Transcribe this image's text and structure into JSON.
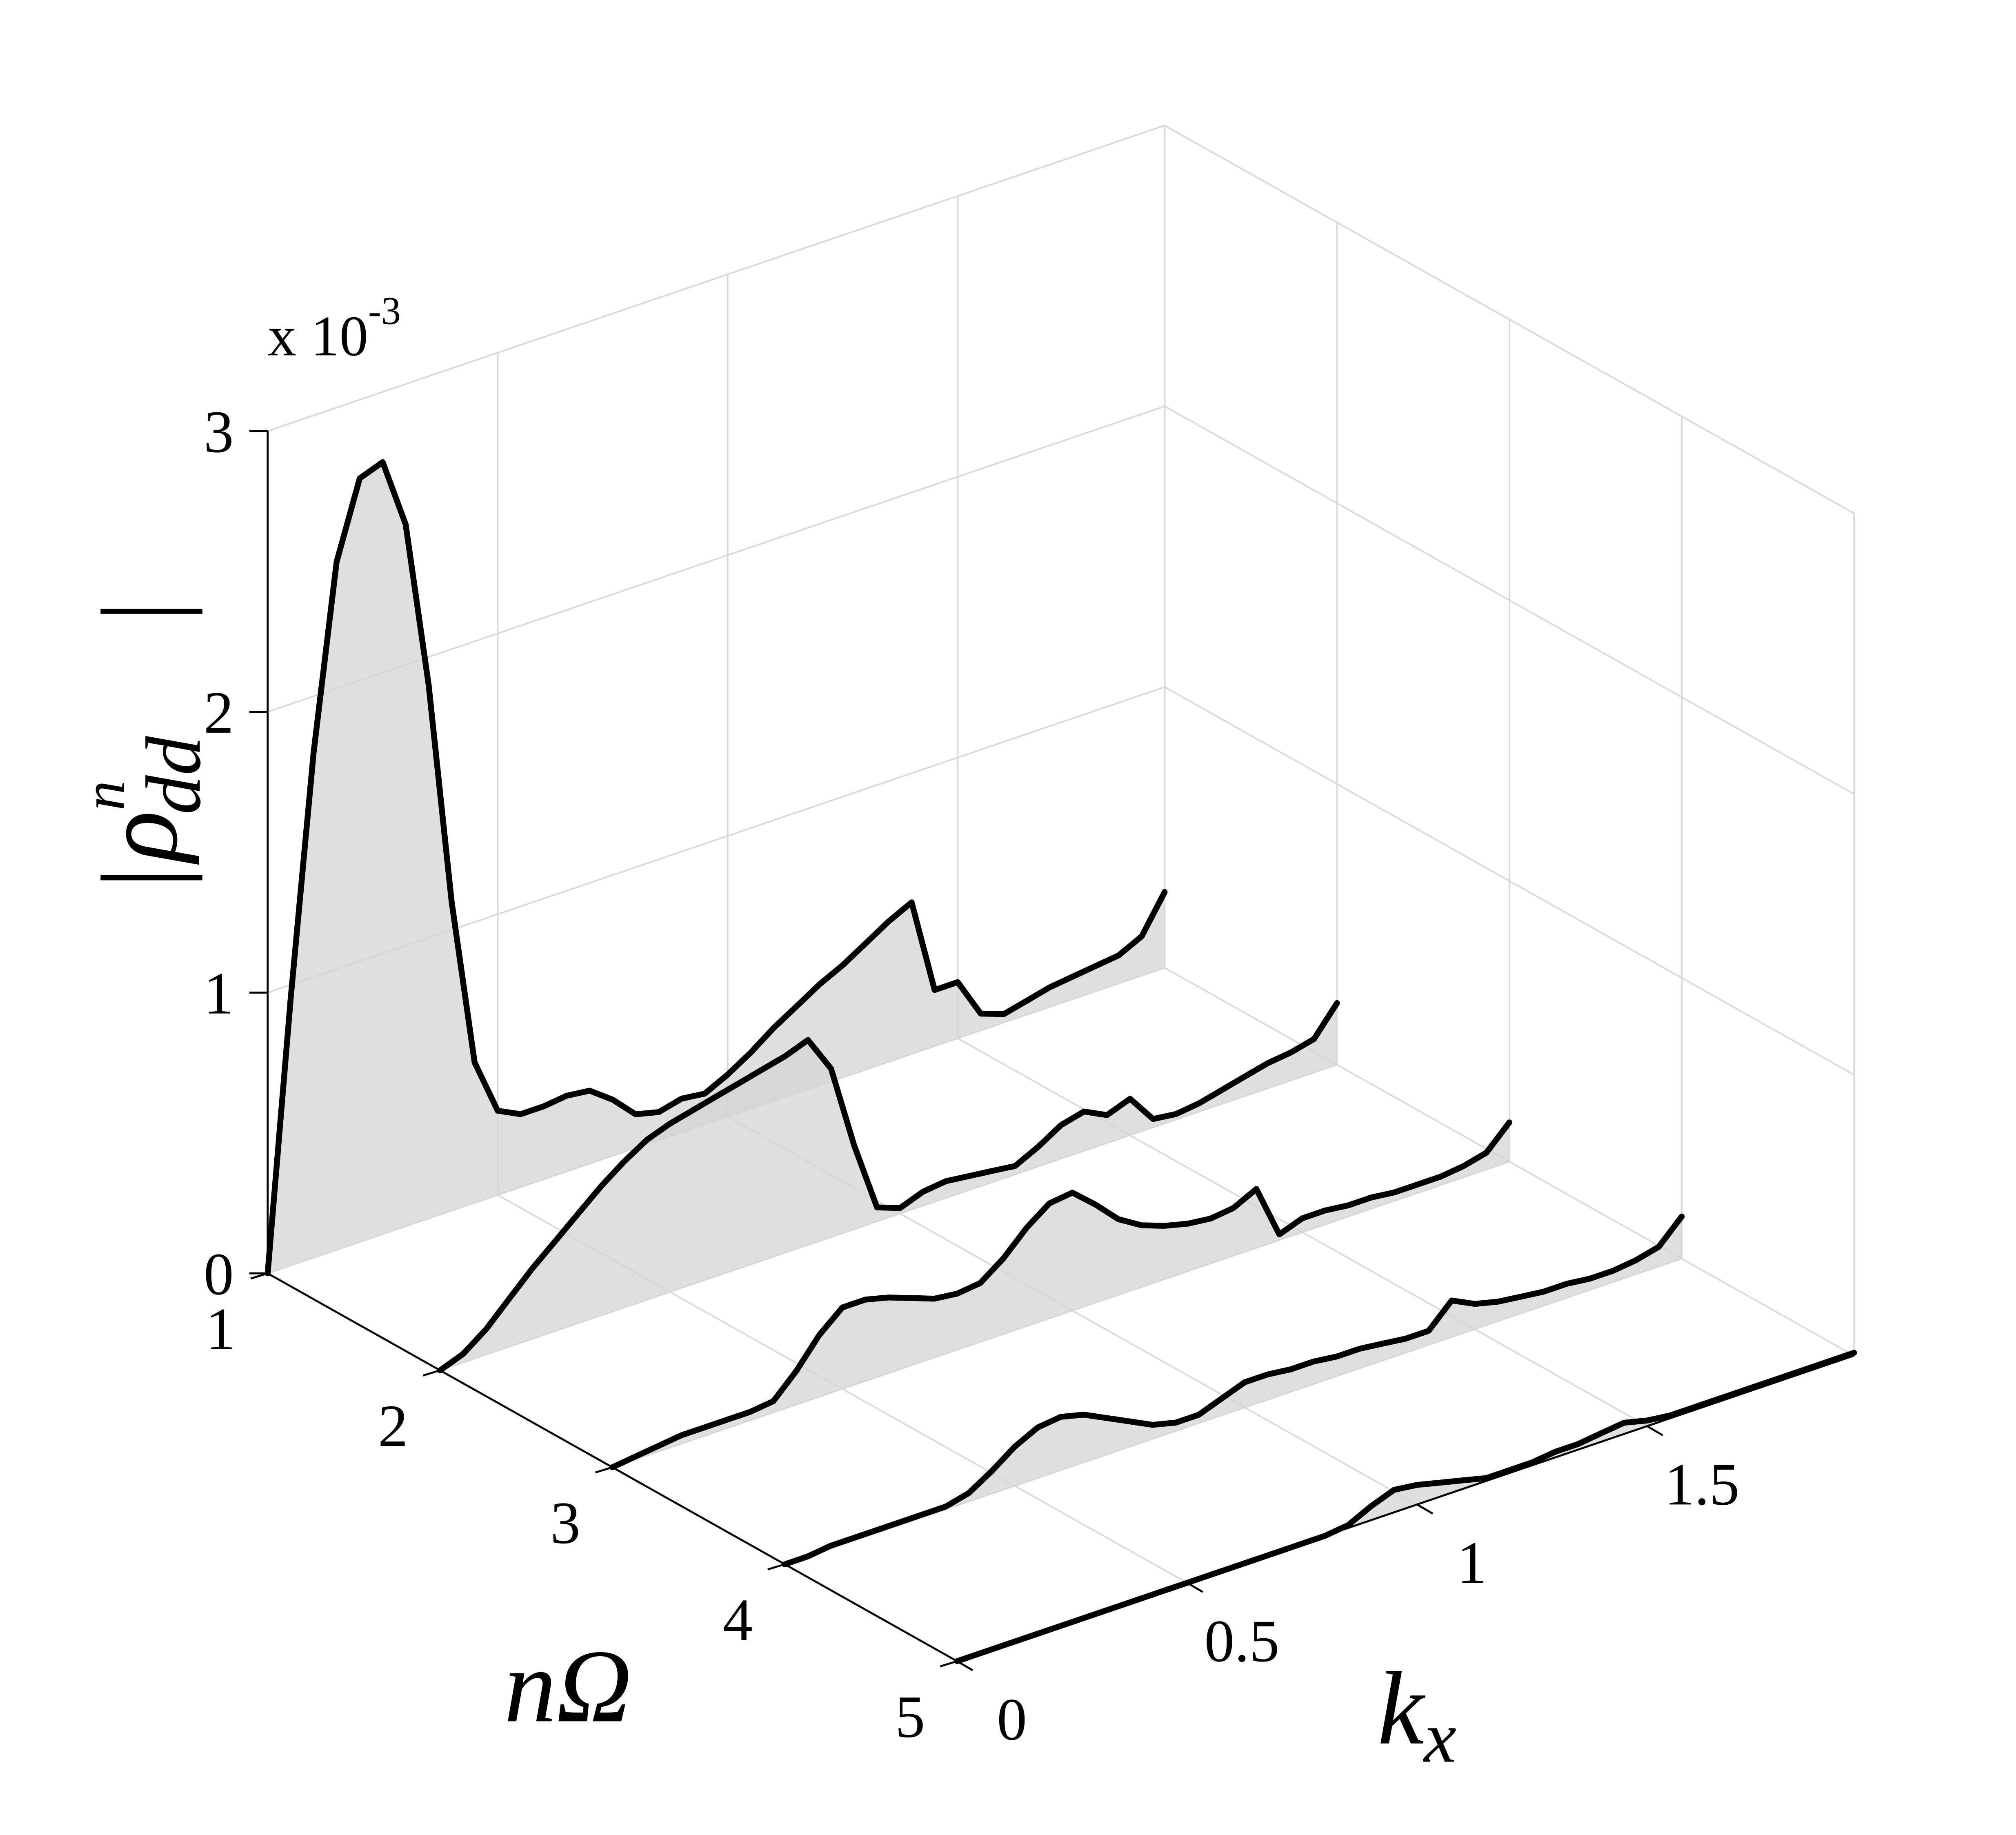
{
  "chart_data": {
    "type": "waterfall3d",
    "multiplier": {
      "base": "x 10",
      "exponent": "-3"
    },
    "zlabel": {
      "base": "ρ",
      "sup": "n",
      "sub": "dd"
    },
    "ylabel": "nΩ",
    "xlabel": {
      "base": "k",
      "sub": "x"
    },
    "xlim": [
      0,
      1.95
    ],
    "xticks": [
      0,
      0.5,
      1,
      1.5
    ],
    "ylim": [
      1,
      5
    ],
    "yticks": [
      1,
      2,
      3,
      4,
      5
    ],
    "zlim": [
      0,
      3
    ],
    "zticks": [
      0,
      1,
      2,
      3
    ],
    "grid": true,
    "color": "#000000",
    "fill_color": "#d4d4d4",
    "x": [
      0,
      0.05,
      0.1,
      0.15,
      0.2,
      0.25,
      0.3,
      0.35,
      0.4,
      0.45,
      0.5,
      0.55,
      0.6,
      0.65,
      0.7,
      0.75,
      0.8,
      0.85,
      0.9,
      0.95,
      1.0,
      1.05,
      1.1,
      1.15,
      1.2,
      1.25,
      1.3,
      1.35,
      1.4,
      1.45,
      1.5,
      1.55,
      1.6,
      1.65,
      1.7,
      1.75,
      1.8,
      1.85,
      1.9,
      1.95
    ],
    "series": [
      {
        "y": 1,
        "values": [
          0,
          0.95,
          1.8,
          2.45,
          2.72,
          2.75,
          2.5,
          1.9,
          1.1,
          0.5,
          0.3,
          0.26,
          0.26,
          0.27,
          0.26,
          0.2,
          0.12,
          0.1,
          0.12,
          0.11,
          0.15,
          0.2,
          0.26,
          0.31,
          0.36,
          0.4,
          0.45,
          0.5,
          0.54,
          0.2,
          0.2,
          0.06,
          0.03,
          0.05,
          0.07,
          0.08,
          0.09,
          0.1,
          0.14,
          0.27
        ]
      },
      {
        "y": 2,
        "values": [
          0,
          0.03,
          0.09,
          0.17,
          0.25,
          0.32,
          0.39,
          0.46,
          0.52,
          0.57,
          0.6,
          0.62,
          0.64,
          0.66,
          0.68,
          0.7,
          0.73,
          0.6,
          0.3,
          0.05,
          0.02,
          0.05,
          0.06,
          0.05,
          0.04,
          0.03,
          0.07,
          0.12,
          0.14,
          0.1,
          0.13,
          0.03,
          0.02,
          0.03,
          0.05,
          0.07,
          0.09,
          0.1,
          0.12,
          0.22
        ]
      },
      {
        "y": 3,
        "values": [
          0,
          0.01,
          0.02,
          0.03,
          0.03,
          0.03,
          0.03,
          0.04,
          0.12,
          0.22,
          0.29,
          0.29,
          0.27,
          0.24,
          0.21,
          0.2,
          0.21,
          0.27,
          0.35,
          0.41,
          0.42,
          0.35,
          0.27,
          0.22,
          0.19,
          0.17,
          0.16,
          0.17,
          0.21,
          0.02,
          0.05,
          0.05,
          0.04,
          0.04,
          0.03,
          0.03,
          0.03,
          0.04,
          0.06,
          0.14
        ]
      },
      {
        "y": 4,
        "values": [
          0,
          0,
          0.01,
          0.01,
          0.01,
          0.01,
          0.01,
          0.01,
          0.03,
          0.08,
          0.14,
          0.18,
          0.19,
          0.17,
          0.13,
          0.09,
          0.05,
          0.03,
          0.03,
          0.06,
          0.09,
          0.09,
          0.08,
          0.08,
          0.07,
          0.07,
          0.06,
          0.05,
          0.05,
          0.13,
          0.09,
          0.07,
          0.06,
          0.05,
          0.05,
          0.04,
          0.04,
          0.05,
          0.07,
          0.15
        ]
      },
      {
        "y": 5,
        "values": [
          0,
          0,
          0,
          0,
          0,
          0,
          0,
          0,
          0,
          0,
          0,
          0,
          0,
          0,
          0,
          0,
          0,
          0.01,
          0.05,
          0.08,
          0.07,
          0.05,
          0.03,
          0.01,
          0.01,
          0.01,
          0.02,
          0.02,
          0.03,
          0.04,
          0.02,
          0.01,
          0.01,
          0.01,
          0.01,
          0.01,
          0.01,
          0.01,
          0.01,
          0.01
        ]
      }
    ]
  }
}
